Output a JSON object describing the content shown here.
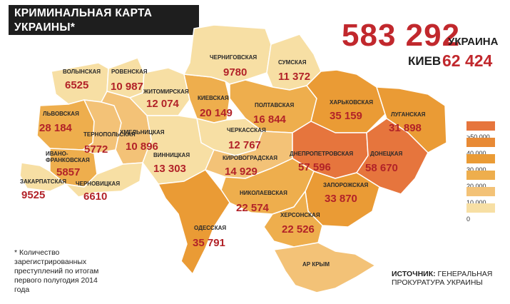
{
  "title": {
    "line1": "КРИМИНАЛЬНАЯ КАРТА",
    "line2": "УКРАИНЫ*"
  },
  "total": {
    "value": "583 292",
    "label": "УКРАИНА"
  },
  "kiev": {
    "label": "КИЕВ",
    "value": "62 424"
  },
  "colors": {
    "c0": "#f7dfa4",
    "c10": "#f3c277",
    "c20": "#eeae4d",
    "c30": "#ea9b35",
    "c40": "#e88a35",
    "c50": "#e6753d",
    "value_red": "#b22228",
    "border": "#ffffff"
  },
  "legend": [
    {
      "label": ">50 000",
      "color": "#e6753d"
    },
    {
      "label": "40 000",
      "color": "#e88a35"
    },
    {
      "label": "30 000",
      "color": "#ea9b35"
    },
    {
      "label": "20 000",
      "color": "#eeae4d"
    },
    {
      "label": "10 000",
      "color": "#f3c277"
    },
    {
      "label": "0",
      "color": "#f7dfa4"
    }
  ],
  "regions": [
    {
      "id": "volyn",
      "name": "ВОЛЫНСКАЯ",
      "value": "6525"
    },
    {
      "id": "rivne",
      "name": "РОВЕНСКАЯ",
      "value": "10 987"
    },
    {
      "id": "zhytomyr",
      "name": "ЖИТОМИРСКАЯ",
      "value": "12 074"
    },
    {
      "id": "kyiv",
      "name": "КИЕВСКАЯ",
      "value": "20 149"
    },
    {
      "id": "chernihiv",
      "name": "ЧЕРНИГОВСКАЯ",
      "value": "9780"
    },
    {
      "id": "sumy",
      "name": "СУМСКАЯ",
      "value": "11 372"
    },
    {
      "id": "lviv",
      "name": "ЛЬВОВСКАЯ",
      "value": "28 184"
    },
    {
      "id": "ternopil",
      "name": "ТЕРНОПОЛЬСКАЯ",
      "value": "5772"
    },
    {
      "id": "khmelnytskyi",
      "name": "ХМЕЛЬНИЦКАЯ",
      "value": "10 896"
    },
    {
      "id": "poltava",
      "name": "ПОЛТАВСКАЯ",
      "value": "16 844"
    },
    {
      "id": "kharkiv",
      "name": "ХАРЬКОВСКАЯ",
      "value": "35 159"
    },
    {
      "id": "luhansk",
      "name": "ЛУГАНСКАЯ",
      "value": "31 898"
    },
    {
      "id": "ivano",
      "name": "ИВАНО-\nФРАНКОВСКАЯ",
      "value": "5857"
    },
    {
      "id": "cherkasy",
      "name": "ЧЕРКАССКАЯ",
      "value": "12 767"
    },
    {
      "id": "vinnytsia",
      "name": "ВИННИЦКАЯ",
      "value": "13 303"
    },
    {
      "id": "kirovohrad",
      "name": "КИРОВОГРАДСКАЯ",
      "value": "14 929"
    },
    {
      "id": "dnipro",
      "name": "ДНЕПРОПЕТРОВСКАЯ",
      "value": "57 596"
    },
    {
      "id": "donetsk",
      "name": "ДОНЕЦКАЯ",
      "value": "58 670"
    },
    {
      "id": "zakarpattia",
      "name": "ЗАКАРПАТСКАЯ",
      "value": "9525"
    },
    {
      "id": "chernivtsi",
      "name": "ЧЕРНОВИЦКАЯ",
      "value": "6610"
    },
    {
      "id": "zaporizhzhia",
      "name": "ЗАПОРОЖСКАЯ",
      "value": "33 870"
    },
    {
      "id": "mykolaiv",
      "name": "НИКОЛАЕВСКАЯ",
      "value": "22 574"
    },
    {
      "id": "kherson",
      "name": "ХЕРСОНСКАЯ",
      "value": "22 526"
    },
    {
      "id": "odesa",
      "name": "ОДЕССКАЯ",
      "value": "35 791"
    },
    {
      "id": "crimea",
      "name": "АР КРЫМ",
      "value": ""
    }
  ],
  "note": "* Количество зарегистрированных преступлений по итогам первого полугодия 2014 года",
  "source": {
    "label": "ИСТОЧНИК:",
    "text": "ГЕНЕРАЛЬНАЯ ПРОКУРАТУРА УКРАИНЫ"
  }
}
